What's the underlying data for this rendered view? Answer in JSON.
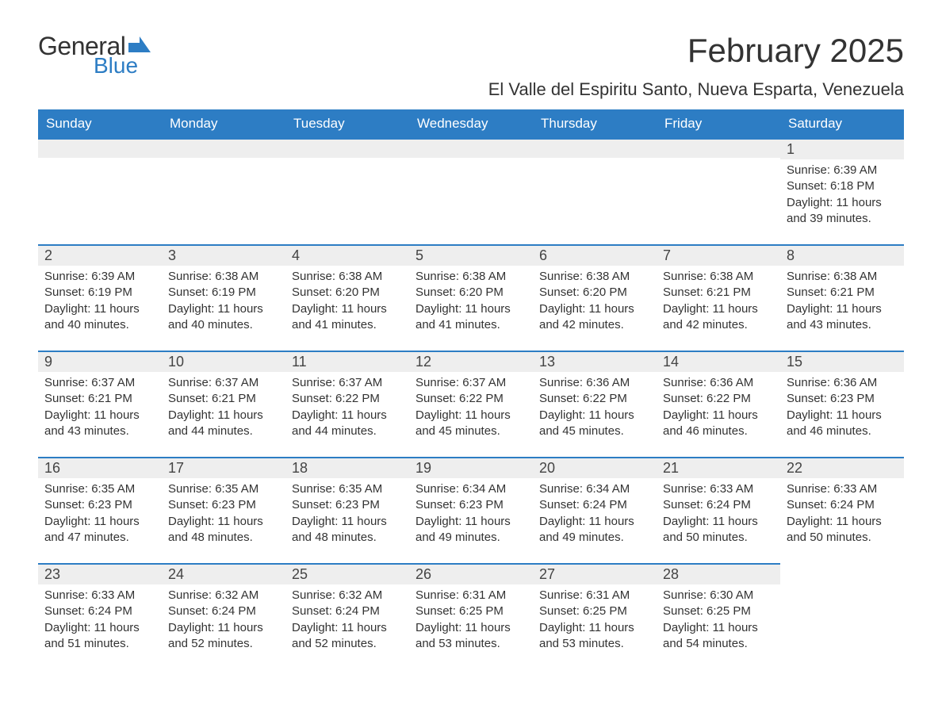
{
  "logo": {
    "text1": "General",
    "text2": "Blue",
    "flag_color": "#2d7dc4"
  },
  "title": "February 2025",
  "location": "El Valle del Espiritu Santo, Nueva Esparta, Venezuela",
  "colors": {
    "header_bg": "#2d7dc4",
    "header_text": "#ffffff",
    "daynum_bg": "#eeeeee",
    "cell_border": "#2d7dc4",
    "body_text": "#333333",
    "page_bg": "#ffffff"
  },
  "typography": {
    "month_title_fontsize": 42,
    "location_fontsize": 22,
    "dayheader_fontsize": 17,
    "daynum_fontsize": 18,
    "body_fontsize": 15
  },
  "day_headers": [
    "Sunday",
    "Monday",
    "Tuesday",
    "Wednesday",
    "Thursday",
    "Friday",
    "Saturday"
  ],
  "weeks": [
    [
      null,
      null,
      null,
      null,
      null,
      null,
      {
        "n": "1",
        "sunrise": "Sunrise: 6:39 AM",
        "sunset": "Sunset: 6:18 PM",
        "daylight": "Daylight: 11 hours and 39 minutes."
      }
    ],
    [
      {
        "n": "2",
        "sunrise": "Sunrise: 6:39 AM",
        "sunset": "Sunset: 6:19 PM",
        "daylight": "Daylight: 11 hours and 40 minutes."
      },
      {
        "n": "3",
        "sunrise": "Sunrise: 6:38 AM",
        "sunset": "Sunset: 6:19 PM",
        "daylight": "Daylight: 11 hours and 40 minutes."
      },
      {
        "n": "4",
        "sunrise": "Sunrise: 6:38 AM",
        "sunset": "Sunset: 6:20 PM",
        "daylight": "Daylight: 11 hours and 41 minutes."
      },
      {
        "n": "5",
        "sunrise": "Sunrise: 6:38 AM",
        "sunset": "Sunset: 6:20 PM",
        "daylight": "Daylight: 11 hours and 41 minutes."
      },
      {
        "n": "6",
        "sunrise": "Sunrise: 6:38 AM",
        "sunset": "Sunset: 6:20 PM",
        "daylight": "Daylight: 11 hours and 42 minutes."
      },
      {
        "n": "7",
        "sunrise": "Sunrise: 6:38 AM",
        "sunset": "Sunset: 6:21 PM",
        "daylight": "Daylight: 11 hours and 42 minutes."
      },
      {
        "n": "8",
        "sunrise": "Sunrise: 6:38 AM",
        "sunset": "Sunset: 6:21 PM",
        "daylight": "Daylight: 11 hours and 43 minutes."
      }
    ],
    [
      {
        "n": "9",
        "sunrise": "Sunrise: 6:37 AM",
        "sunset": "Sunset: 6:21 PM",
        "daylight": "Daylight: 11 hours and 43 minutes."
      },
      {
        "n": "10",
        "sunrise": "Sunrise: 6:37 AM",
        "sunset": "Sunset: 6:21 PM",
        "daylight": "Daylight: 11 hours and 44 minutes."
      },
      {
        "n": "11",
        "sunrise": "Sunrise: 6:37 AM",
        "sunset": "Sunset: 6:22 PM",
        "daylight": "Daylight: 11 hours and 44 minutes."
      },
      {
        "n": "12",
        "sunrise": "Sunrise: 6:37 AM",
        "sunset": "Sunset: 6:22 PM",
        "daylight": "Daylight: 11 hours and 45 minutes."
      },
      {
        "n": "13",
        "sunrise": "Sunrise: 6:36 AM",
        "sunset": "Sunset: 6:22 PM",
        "daylight": "Daylight: 11 hours and 45 minutes."
      },
      {
        "n": "14",
        "sunrise": "Sunrise: 6:36 AM",
        "sunset": "Sunset: 6:22 PM",
        "daylight": "Daylight: 11 hours and 46 minutes."
      },
      {
        "n": "15",
        "sunrise": "Sunrise: 6:36 AM",
        "sunset": "Sunset: 6:23 PM",
        "daylight": "Daylight: 11 hours and 46 minutes."
      }
    ],
    [
      {
        "n": "16",
        "sunrise": "Sunrise: 6:35 AM",
        "sunset": "Sunset: 6:23 PM",
        "daylight": "Daylight: 11 hours and 47 minutes."
      },
      {
        "n": "17",
        "sunrise": "Sunrise: 6:35 AM",
        "sunset": "Sunset: 6:23 PM",
        "daylight": "Daylight: 11 hours and 48 minutes."
      },
      {
        "n": "18",
        "sunrise": "Sunrise: 6:35 AM",
        "sunset": "Sunset: 6:23 PM",
        "daylight": "Daylight: 11 hours and 48 minutes."
      },
      {
        "n": "19",
        "sunrise": "Sunrise: 6:34 AM",
        "sunset": "Sunset: 6:23 PM",
        "daylight": "Daylight: 11 hours and 49 minutes."
      },
      {
        "n": "20",
        "sunrise": "Sunrise: 6:34 AM",
        "sunset": "Sunset: 6:24 PM",
        "daylight": "Daylight: 11 hours and 49 minutes."
      },
      {
        "n": "21",
        "sunrise": "Sunrise: 6:33 AM",
        "sunset": "Sunset: 6:24 PM",
        "daylight": "Daylight: 11 hours and 50 minutes."
      },
      {
        "n": "22",
        "sunrise": "Sunrise: 6:33 AM",
        "sunset": "Sunset: 6:24 PM",
        "daylight": "Daylight: 11 hours and 50 minutes."
      }
    ],
    [
      {
        "n": "23",
        "sunrise": "Sunrise: 6:33 AM",
        "sunset": "Sunset: 6:24 PM",
        "daylight": "Daylight: 11 hours and 51 minutes."
      },
      {
        "n": "24",
        "sunrise": "Sunrise: 6:32 AM",
        "sunset": "Sunset: 6:24 PM",
        "daylight": "Daylight: 11 hours and 52 minutes."
      },
      {
        "n": "25",
        "sunrise": "Sunrise: 6:32 AM",
        "sunset": "Sunset: 6:24 PM",
        "daylight": "Daylight: 11 hours and 52 minutes."
      },
      {
        "n": "26",
        "sunrise": "Sunrise: 6:31 AM",
        "sunset": "Sunset: 6:25 PM",
        "daylight": "Daylight: 11 hours and 53 minutes."
      },
      {
        "n": "27",
        "sunrise": "Sunrise: 6:31 AM",
        "sunset": "Sunset: 6:25 PM",
        "daylight": "Daylight: 11 hours and 53 minutes."
      },
      {
        "n": "28",
        "sunrise": "Sunrise: 6:30 AM",
        "sunset": "Sunset: 6:25 PM",
        "daylight": "Daylight: 11 hours and 54 minutes."
      },
      null
    ]
  ]
}
